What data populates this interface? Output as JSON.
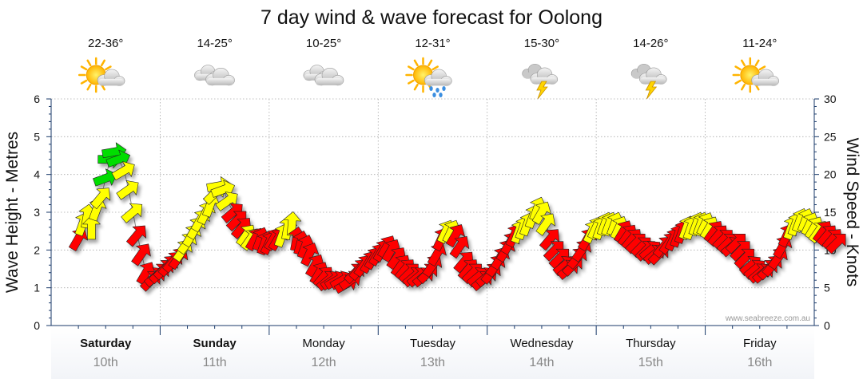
{
  "chart_data": {
    "type": "line",
    "title": "7 day wind & wave forecast for Oolong",
    "ylabel_left": "Wave Height - Metres",
    "ylabel_right": "Wind Speed - Knots",
    "ylim_left": [
      0,
      6
    ],
    "ylim_right": [
      0,
      30
    ],
    "yticks_left": [
      "0",
      "1",
      "2",
      "3",
      "4",
      "5",
      "6"
    ],
    "yticks_right": [
      "0",
      "5",
      "10",
      "15",
      "20",
      "25",
      "30"
    ],
    "grid": true,
    "watermark": "www.seabreeze.com.au",
    "days": [
      {
        "day": "Saturday",
        "date": "10th",
        "temp": "22-36°",
        "icon": "sun-cloud-icon",
        "bold": true
      },
      {
        "day": "Sunday",
        "date": "11th",
        "temp": "14-25°",
        "icon": "cloud-icon",
        "bold": true
      },
      {
        "day": "Monday",
        "date": "12th",
        "temp": "10-25°",
        "icon": "cloud-icon",
        "bold": false
      },
      {
        "day": "Tuesday",
        "date": "13th",
        "temp": "12-31°",
        "icon": "sun-rain-icon",
        "bold": false
      },
      {
        "day": "Wednesday",
        "date": "14th",
        "temp": "15-30°",
        "icon": "thunderstorm-icon",
        "bold": false
      },
      {
        "day": "Thursday",
        "date": "15th",
        "temp": "14-26°",
        "icon": "thunderstorm-icon",
        "bold": false
      },
      {
        "day": "Friday",
        "date": "16th",
        "temp": "11-24°",
        "icon": "sun-cloud-icon",
        "bold": false
      }
    ],
    "wind_colors": {
      "light": "#ff0000",
      "moderate": "#ffff00",
      "strong": "#00dd00"
    },
    "series": [
      {
        "x": [
          0.0,
          0.04,
          0.08,
          0.12,
          0.17,
          0.21,
          0.25,
          0.29,
          0.33,
          0.37,
          0.42,
          0.46,
          0.5,
          0.54,
          0.58,
          0.62,
          0.67,
          0.71,
          0.75,
          0.79,
          0.83,
          0.87,
          0.92,
          0.96,
          1.0,
          1.04,
          1.08,
          1.12,
          1.17,
          1.21,
          1.25,
          1.29,
          1.33,
          1.37,
          1.42,
          1.46,
          1.5,
          1.54,
          1.58,
          1.62,
          1.67,
          1.71,
          1.75,
          1.79,
          1.83,
          1.87,
          1.92,
          1.96,
          2.0,
          2.04,
          2.08,
          2.12,
          2.17,
          2.21,
          2.25,
          2.29,
          2.33,
          2.37,
          2.42,
          2.46,
          2.5,
          2.54,
          2.58,
          2.62,
          2.67,
          2.71,
          2.75,
          2.79,
          2.83,
          2.87,
          2.92,
          2.96,
          3.0,
          3.04,
          3.08,
          3.12,
          3.17,
          3.21,
          3.25,
          3.29,
          3.33,
          3.37,
          3.42,
          3.46,
          3.5,
          3.54,
          3.58,
          3.62,
          3.67,
          3.71,
          3.75,
          3.79,
          3.83,
          3.87,
          3.92,
          3.96,
          4.0,
          4.04,
          4.08,
          4.12,
          4.17,
          4.21,
          4.25,
          4.29,
          4.33,
          4.37,
          4.42,
          4.46,
          4.5,
          4.54,
          4.58,
          4.62,
          4.67,
          4.71,
          4.75,
          4.79,
          4.83,
          4.87,
          4.92,
          4.96,
          5.0,
          5.04,
          5.08,
          5.12,
          5.17,
          5.21,
          5.25,
          5.29,
          5.33,
          5.37,
          5.42,
          5.46,
          5.5,
          5.54,
          5.58,
          5.62,
          5.67,
          5.71,
          5.75,
          5.79,
          5.83,
          5.87,
          5.92,
          5.96,
          6.0,
          6.04,
          6.08,
          6.12,
          6.17,
          6.21,
          6.25,
          6.29,
          6.33,
          6.37,
          6.42,
          6.46,
          6.5,
          6.54,
          6.58,
          6.62,
          6.67,
          6.71,
          6.75,
          6.79,
          6.83,
          6.87,
          6.92,
          6.96
        ],
        "wave_m": [
          2.3,
          2.7,
          2.9,
          2.6,
          3.1,
          3.4,
          3.9,
          4.4,
          4.6,
          4.4,
          4.1,
          3.6,
          3.0,
          2.4,
          1.9,
          1.4,
          1.2,
          1.3,
          1.4,
          1.5,
          1.6,
          1.7,
          1.8,
          2.0,
          2.2,
          2.4,
          2.6,
          2.8,
          3.0,
          3.2,
          3.5,
          3.7,
          3.6,
          3.3,
          3.0,
          2.8,
          2.6,
          2.4,
          2.3,
          2.3,
          2.3,
          2.2,
          2.2,
          2.3,
          2.3,
          2.4,
          2.6,
          2.7,
          2.3,
          2.2,
          2.1,
          1.9,
          1.6,
          1.4,
          1.3,
          1.2,
          1.2,
          1.2,
          1.2,
          1.1,
          1.2,
          1.4,
          1.5,
          1.6,
          1.7,
          1.8,
          1.9,
          2.0,
          2.1,
          2.0,
          1.8,
          1.6,
          1.5,
          1.4,
          1.3,
          1.3,
          1.3,
          1.4,
          1.6,
          1.9,
          2.3,
          2.5,
          2.5,
          2.4,
          2.1,
          1.7,
          1.5,
          1.4,
          1.3,
          1.2,
          1.3,
          1.4,
          1.6,
          1.8,
          2.0,
          2.2,
          2.4,
          2.5,
          2.6,
          2.7,
          2.9,
          3.1,
          3.0,
          2.7,
          2.3,
          2.0,
          1.8,
          1.6,
          1.5,
          1.6,
          1.8,
          2.0,
          2.3,
          2.5,
          2.6,
          2.6,
          2.7,
          2.7,
          2.7,
          2.6,
          2.5,
          2.4,
          2.3,
          2.2,
          2.1,
          2.0,
          2.0,
          1.9,
          1.9,
          2.1,
          2.2,
          2.3,
          2.4,
          2.5,
          2.6,
          2.6,
          2.7,
          2.7,
          2.7,
          2.6,
          2.5,
          2.4,
          2.3,
          2.2,
          2.1,
          2.2,
          2.0,
          1.8,
          1.6,
          1.5,
          1.4,
          1.4,
          1.5,
          1.6,
          1.8,
          2.1,
          2.4,
          2.6,
          2.7,
          2.8,
          2.8,
          2.7,
          2.6,
          2.5,
          2.5,
          2.4,
          2.3,
          2.2
        ],
        "wind_kts": [
          12,
          14,
          14,
          13,
          16,
          18,
          20,
          23,
          22,
          21,
          19,
          16,
          14,
          12,
          10,
          7,
          6,
          7,
          8,
          9,
          10,
          11,
          12,
          14,
          15,
          16,
          17,
          18,
          18,
          19,
          18,
          16,
          14,
          13,
          12,
          12,
          12,
          13,
          13,
          12,
          12,
          11,
          11,
          12,
          12,
          13,
          13,
          13,
          11,
          10,
          9,
          8,
          7,
          6,
          6,
          6,
          6,
          6,
          5,
          5,
          6,
          7,
          8,
          9,
          10,
          10,
          11,
          11,
          11,
          10,
          9,
          8,
          7,
          6,
          6,
          6,
          6,
          7,
          8,
          10,
          12,
          13,
          13,
          12,
          11,
          9,
          8,
          7,
          7,
          6,
          6,
          7,
          8,
          9,
          10,
          11,
          12,
          13,
          13,
          13,
          14,
          15,
          15,
          14,
          12,
          10,
          9,
          8,
          7,
          8,
          9,
          10,
          12,
          13,
          13,
          13,
          14,
          14,
          14,
          13,
          12,
          11,
          10,
          9,
          9,
          8,
          8,
          8,
          8,
          9,
          10,
          11,
          12,
          12,
          13,
          13,
          13,
          14,
          14,
          13,
          12,
          12,
          11,
          11,
          10,
          11,
          10,
          9,
          8,
          7,
          7,
          7,
          8,
          9,
          10,
          11,
          12,
          13,
          14,
          14,
          14,
          14,
          13,
          13,
          12,
          12,
          11,
          10
        ],
        "wind_dir_deg": [
          210,
          200,
          190,
          180,
          200,
          220,
          250,
          270,
          260,
          250,
          240,
          235,
          230,
          220,
          215,
          210,
          225,
          230,
          225,
          225,
          220,
          220,
          215,
          215,
          215,
          210,
          210,
          210,
          205,
          200,
          225,
          260,
          250,
          235,
          230,
          225,
          220,
          215,
          215,
          210,
          200,
          200,
          205,
          210,
          210,
          200,
          190,
          185,
          190,
          195,
          200,
          205,
          210,
          210,
          220,
          230,
          235,
          240,
          240,
          240,
          235,
          225,
          220,
          215,
          210,
          210,
          210,
          210,
          210,
          210,
          215,
          215,
          220,
          225,
          230,
          230,
          230,
          225,
          215,
          210,
          205,
          205,
          205,
          210,
          215,
          220,
          220,
          225,
          230,
          230,
          230,
          220,
          215,
          210,
          210,
          210,
          205,
          200,
          200,
          200,
          200,
          200,
          210,
          215,
          220,
          225,
          225,
          230,
          230,
          225,
          220,
          215,
          210,
          205,
          205,
          200,
          200,
          200,
          200,
          205,
          210,
          215,
          220,
          225,
          225,
          225,
          230,
          230,
          225,
          220,
          215,
          205,
          200,
          200,
          200,
          200,
          200,
          200,
          205,
          210,
          215,
          220,
          225,
          225,
          230,
          225,
          225,
          225,
          230,
          230,
          230,
          230,
          225,
          220,
          215,
          210,
          205,
          200,
          200,
          200,
          200,
          205,
          210,
          215,
          215,
          220,
          220,
          225
        ]
      }
    ]
  }
}
